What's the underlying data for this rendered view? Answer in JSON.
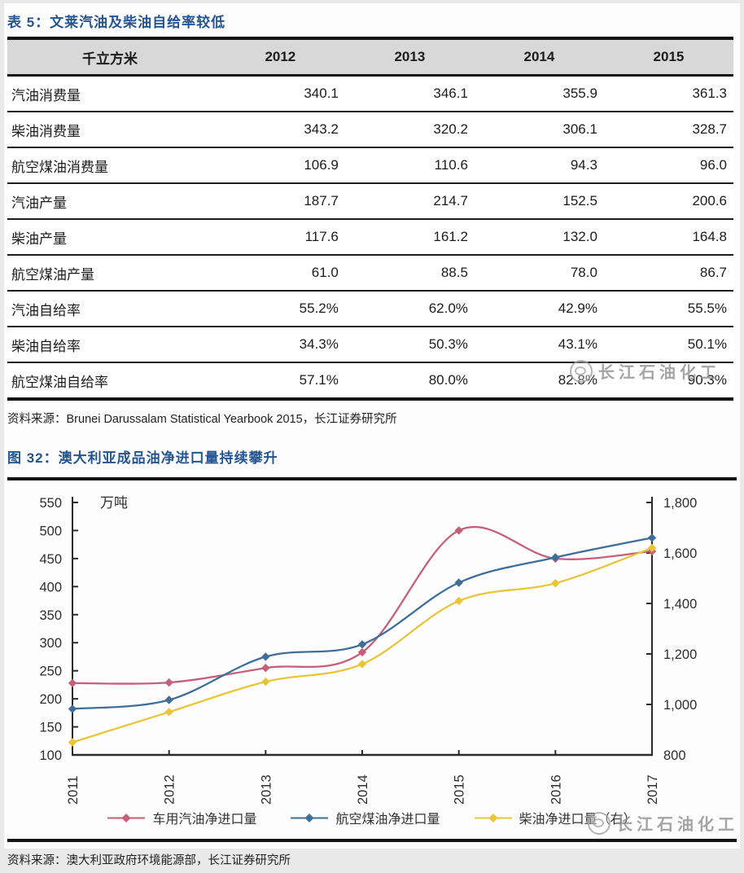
{
  "watermark": {
    "text": "长江石油化工"
  },
  "colors": {
    "title_blue": "#25558f",
    "table_header_bg": "#d8d8d8",
    "rule_black": "#141414",
    "series_red": "#c4607a",
    "series_blue": "#3f6e99",
    "series_yellow": "#e9c53a"
  },
  "table_section": {
    "title": "表 5：文莱汽油及柴油自给率较低",
    "unit_header": "千立方米",
    "years": [
      "2012",
      "2013",
      "2014",
      "2015"
    ],
    "rows": [
      {
        "label": "汽油消费量",
        "values": [
          "340.1",
          "346.1",
          "355.9",
          "361.3"
        ]
      },
      {
        "label": "柴油消费量",
        "values": [
          "343.2",
          "320.2",
          "306.1",
          "328.7"
        ]
      },
      {
        "label": "航空煤油消费量",
        "values": [
          "106.9",
          "110.6",
          "94.3",
          "96.0"
        ]
      },
      {
        "label": "汽油产量",
        "values": [
          "187.7",
          "214.7",
          "152.5",
          "200.6"
        ]
      },
      {
        "label": "柴油产量",
        "values": [
          "117.6",
          "161.2",
          "132.0",
          "164.8"
        ]
      },
      {
        "label": "航空煤油产量",
        "values": [
          "61.0",
          "88.5",
          "78.0",
          "86.7"
        ]
      },
      {
        "label": "汽油自给率",
        "values": [
          "55.2%",
          "62.0%",
          "42.9%",
          "55.5%"
        ]
      },
      {
        "label": "柴油自给率",
        "values": [
          "34.3%",
          "50.3%",
          "43.1%",
          "50.1%"
        ]
      },
      {
        "label": "航空煤油自给率",
        "values": [
          "57.1%",
          "80.0%",
          "82.8%",
          "90.3%"
        ]
      }
    ],
    "source": "资料来源：Brunei Darussalam Statistical Yearbook 2015，长江证券研究所"
  },
  "chart_section": {
    "title": "图 32：澳大利亚成品油净进口量持续攀升",
    "source": "资料来源：澳大利亚政府环境能源部，长江证券研究所"
  },
  "chart_data": {
    "type": "line",
    "title": "澳大利亚成品油净进口量持续攀升",
    "unit_label": "万吨",
    "x": [
      "2011",
      "2012",
      "2013",
      "2014",
      "2015",
      "2016",
      "2017"
    ],
    "left_axis": {
      "min": 100,
      "max": 550,
      "step": 50,
      "tick_labels": [
        "100",
        "150",
        "200",
        "250",
        "300",
        "350",
        "400",
        "450",
        "500",
        "550"
      ]
    },
    "right_axis": {
      "min": 800,
      "max": 1800,
      "step": 200,
      "tick_labels": [
        "800",
        "1,000",
        "1,200",
        "1,400",
        "1,600",
        "1,800"
      ]
    },
    "grid": false,
    "legend_position": "bottom",
    "series": [
      {
        "name": "车用汽油净进口量",
        "axis": "left",
        "color": "#c4607a",
        "values": [
          228,
          229,
          255,
          283,
          500,
          450,
          463
        ]
      },
      {
        "name": "航空煤油净进口量",
        "axis": "left",
        "color": "#3f6e99",
        "values": [
          182,
          198,
          275,
          297,
          407,
          452,
          487
        ]
      },
      {
        "name": "柴油净进口量（右）",
        "axis": "right",
        "color": "#e9c53a",
        "values": [
          850,
          970,
          1090,
          1160,
          1410,
          1480,
          1620
        ]
      }
    ]
  }
}
